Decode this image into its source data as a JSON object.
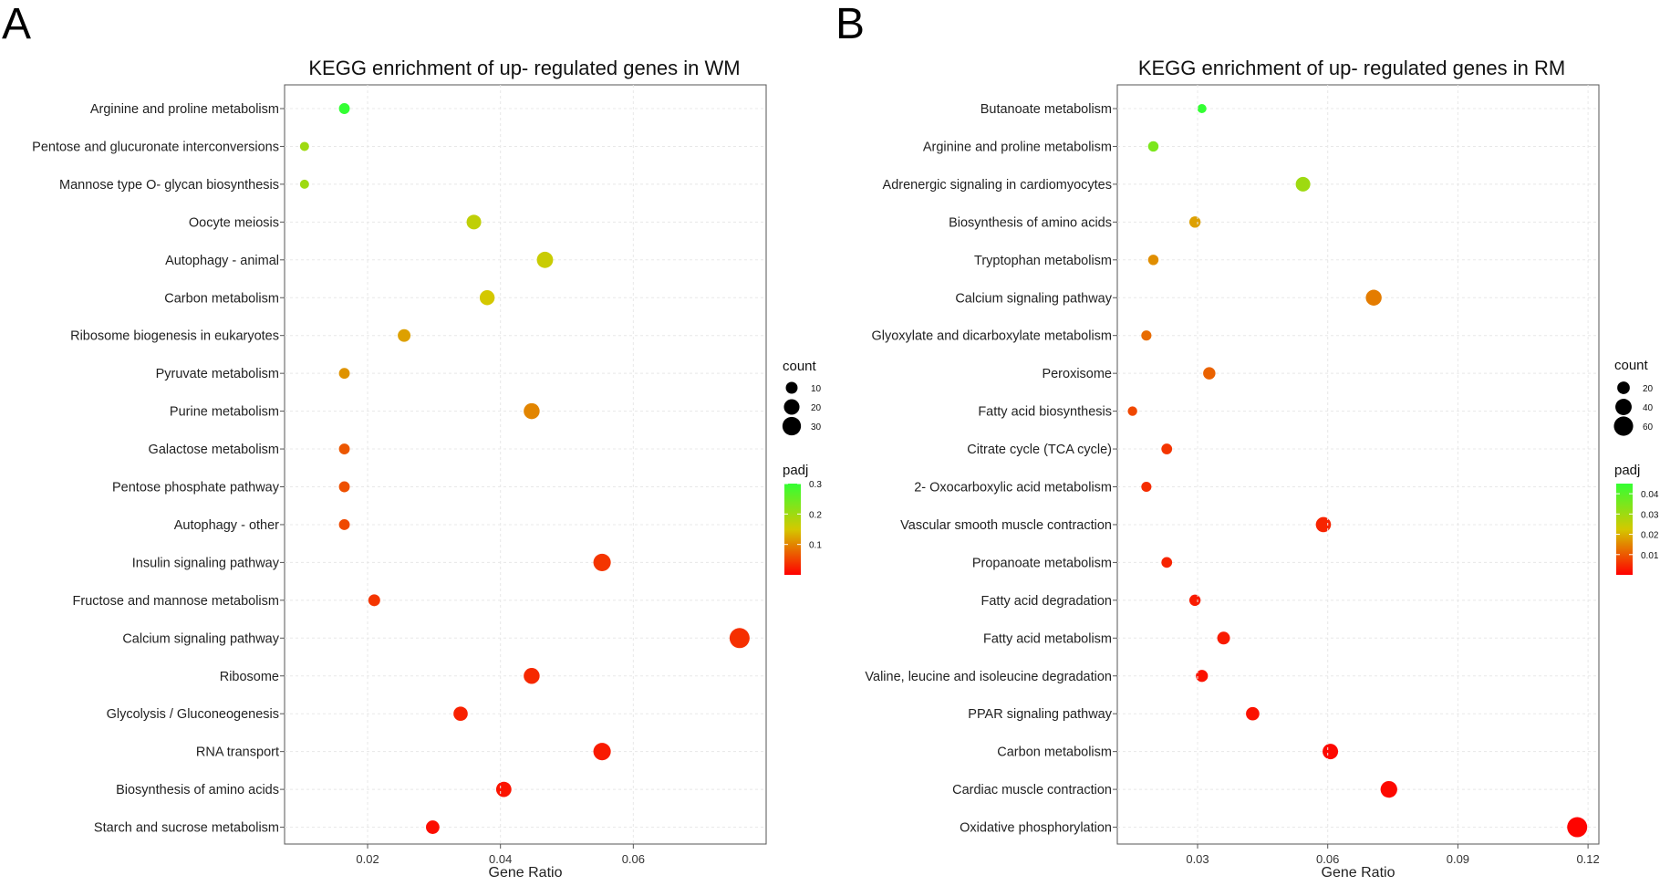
{
  "chart_data": [
    {
      "panel": "A",
      "type": "scatter",
      "title": "KEGG enrichment of up- regulated  genes in WM",
      "xlabel": "Gene Ratio",
      "xlim": [
        0.0075,
        0.08
      ],
      "xticks": [
        0.02,
        0.04,
        0.06
      ],
      "xtick_labels": [
        "0.02",
        "0.04",
        "0.06"
      ],
      "categories": [
        "Arginine and proline metabolism",
        "Pentose and glucuronate interconversions",
        "Mannose type O- glycan biosynthesis",
        "Oocyte meiosis",
        "Autophagy -  animal",
        "Carbon metabolism",
        "Ribosome biogenesis in eukaryotes",
        "Pyruvate metabolism",
        "Purine metabolism",
        "Galactose metabolism",
        "Pentose phosphate pathway",
        "Autophagy -  other",
        "Insulin signaling pathway",
        "Fructose and mannose metabolism",
        "Calcium signaling pathway",
        "Ribosome",
        "Glycolysis / Gluconeogenesis",
        "RNA transport",
        "Biosynthesis of amino acids",
        "Starch and sucrose metabolism"
      ],
      "gene_ratio": [
        0.0165,
        0.0105,
        0.0105,
        0.036,
        0.0467,
        0.038,
        0.0255,
        0.0165,
        0.0447,
        0.0165,
        0.0165,
        0.0165,
        0.0553,
        0.021,
        0.076,
        0.0447,
        0.034,
        0.0553,
        0.0405,
        0.0298
      ],
      "count": [
        8,
        5,
        5,
        17,
        22,
        18,
        12,
        8,
        21,
        8,
        8,
        8,
        26,
        10,
        36,
        21,
        16,
        26,
        19,
        14
      ],
      "padj": [
        0.3,
        0.2,
        0.2,
        0.17,
        0.16,
        0.15,
        0.12,
        0.11,
        0.1,
        0.065,
        0.06,
        0.055,
        0.04,
        0.04,
        0.035,
        0.03,
        0.025,
        0.02,
        0.015,
        0.01
      ],
      "size_legend": {
        "title": "count",
        "values": [
          10,
          20,
          30
        ],
        "labels": [
          "10",
          "20",
          "30"
        ]
      },
      "color_legend": {
        "title": "padj",
        "range": [
          0.0,
          0.3
        ],
        "ticks": [
          0.1,
          0.2,
          0.3
        ],
        "labels": [
          "0.1",
          "0.2",
          "0.3"
        ],
        "low_color": "#ff0000",
        "mid_color": "#d4c800",
        "high_color": "#33ff33"
      }
    },
    {
      "panel": "B",
      "type": "scatter",
      "title": "KEGG enrichment of up- regulated  genes in RM",
      "xlabel": "Gene Ratio",
      "xlim": [
        0.0115,
        0.1225
      ],
      "xticks": [
        0.03,
        0.06,
        0.09,
        0.12
      ],
      "xtick_labels": [
        "0.03",
        "0.06",
        "0.09",
        "0.12"
      ],
      "categories": [
        "Butanoate metabolism",
        "Arginine and proline metabolism",
        "Adrenergic signaling in cardiomyocytes",
        "Biosynthesis of amino acids",
        "Tryptophan metabolism",
        "Calcium signaling pathway",
        "Glyoxylate and dicarboxylate metabolism",
        "Peroxisome",
        "Fatty acid biosynthesis",
        "Citrate cycle (TCA cycle)",
        "2- Oxocarboxylic acid metabolism",
        "Vascular smooth muscle contraction",
        "Propanoate metabolism",
        "Fatty acid degradation",
        "Fatty acid metabolism",
        "Valine, leucine and isoleucine degradation",
        "PPAR signaling pathway",
        "Carbon metabolism",
        "Cardiac muscle contraction",
        "Oxidative phosphorylation"
      ],
      "gene_ratio": [
        0.031,
        0.0198,
        0.0543,
        0.0294,
        0.0198,
        0.0706,
        0.0182,
        0.0327,
        0.015,
        0.0229,
        0.0182,
        0.059,
        0.0229,
        0.0294,
        0.036,
        0.031,
        0.0427,
        0.0606,
        0.0741,
        0.1175
      ],
      "count": [
        8,
        12,
        30,
        15,
        12,
        37,
        11,
        19,
        9,
        13,
        11,
        33,
        13,
        15,
        21,
        18,
        24,
        35,
        42,
        66
      ],
      "padj": [
        0.045,
        0.035,
        0.03,
        0.018,
        0.016,
        0.014,
        0.012,
        0.011,
        0.008,
        0.006,
        0.005,
        0.004,
        0.004,
        0.003,
        0.003,
        0.002,
        0.002,
        0.001,
        0.001,
        0.0005
      ],
      "size_legend": {
        "title": "count",
        "values": [
          20,
          40,
          60
        ],
        "labels": [
          "20",
          "40",
          "60"
        ]
      },
      "color_legend": {
        "title": "padj",
        "range": [
          0.0,
          0.045
        ],
        "ticks": [
          0.01,
          0.02,
          0.03,
          0.04
        ],
        "labels": [
          "0.01",
          "0.02",
          "0.03",
          "0.04"
        ],
        "low_color": "#ff0000",
        "mid_color": "#d4c800",
        "high_color": "#33ff33"
      }
    }
  ]
}
